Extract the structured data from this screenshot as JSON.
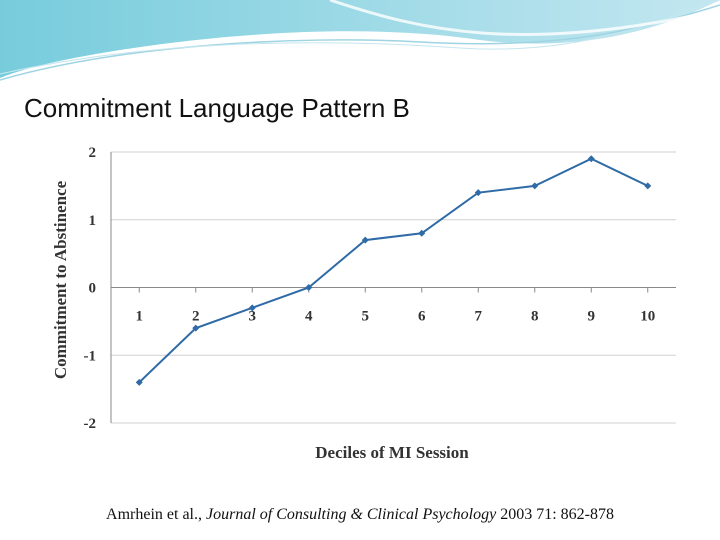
{
  "chart_data": {
    "type": "line",
    "title": "Commitment Language Pattern B",
    "x_label": "Deciles of MI Session",
    "y_label": "Commitment to Abstinence",
    "x": [
      1,
      2,
      3,
      4,
      5,
      6,
      7,
      8,
      9,
      10
    ],
    "xlim": [
      0.5,
      10.5
    ],
    "xticks": [
      1,
      2,
      3,
      4,
      5,
      6,
      7,
      8,
      9,
      10
    ],
    "values": [
      -1.4,
      -0.6,
      -0.3,
      0,
      0.7,
      0.8,
      1.4,
      1.5,
      1.9,
      1.5
    ],
    "color": "#2f6ba6",
    "ylim": [
      -2,
      2
    ],
    "yticks": [
      -2,
      -1,
      0,
      1,
      2
    ],
    "grid": true,
    "source": {
      "authors": "Amrhein et al.,",
      "journal": "Journal of Consulting & Clinical Psychology",
      "citation": "2003  71: 862-878"
    }
  }
}
